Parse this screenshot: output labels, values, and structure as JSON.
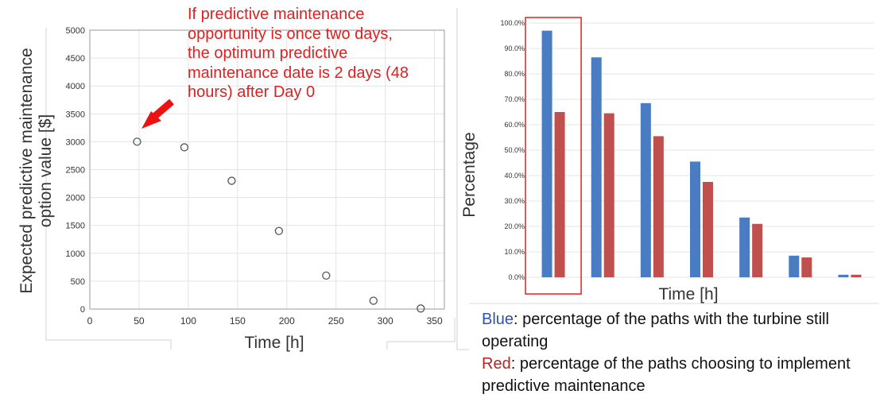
{
  "chart_data": [
    {
      "type": "scatter",
      "title": "",
      "xlabel": "Time [h]",
      "ylabel_lines": [
        "Expected predictive maintenance",
        "option value [$]"
      ],
      "xlim": [
        0,
        360
      ],
      "ylim": [
        0,
        5000
      ],
      "xticks": [
        "0",
        "50",
        "100",
        "150",
        "200",
        "250",
        "300",
        "350"
      ],
      "yticks": [
        "0",
        "500",
        "1000",
        "1500",
        "2000",
        "2500",
        "3000",
        "3500",
        "4000",
        "4500",
        "5000"
      ],
      "grid": true,
      "points": [
        {
          "x": 48,
          "y": 3000
        },
        {
          "x": 96,
          "y": 2900
        },
        {
          "x": 144,
          "y": 2300
        },
        {
          "x": 192,
          "y": 1400
        },
        {
          "x": 240,
          "y": 600
        },
        {
          "x": 288,
          "y": 150
        },
        {
          "x": 336,
          "y": 10
        }
      ],
      "annotation_lines": [
        "If predictive maintenance",
        "opportunity is once two days,",
        "the optimum predictive",
        "maintenance date is 2 days (48",
        "hours) after Day 0"
      ],
      "annotation_color": "#e02020"
    },
    {
      "type": "bar",
      "title": "",
      "xlabel": "Time [h]",
      "ylabel": "Percentage",
      "ylim": [
        0,
        1
      ],
      "yticks": [
        "0.0%",
        "10.0%",
        "20.0%",
        "30.0%",
        "40.0%",
        "50.0%",
        "60.0%",
        "70.0%",
        "80.0%",
        "90.0%",
        "100.0%"
      ],
      "grid": true,
      "categories_count": 7,
      "series": [
        {
          "color": "#4a7cc4",
          "values": [
            0.97,
            0.865,
            0.685,
            0.455,
            0.235,
            0.085,
            0.01
          ]
        },
        {
          "color": "#c0504d",
          "values": [
            0.65,
            0.645,
            0.555,
            0.375,
            0.21,
            0.078,
            0.01
          ]
        }
      ],
      "highlight_category": 0,
      "highlight_color": "#e02020",
      "legend": {
        "blue_key": "Blue",
        "blue_text": ": percentage of the paths with the turbine still operating",
        "red_key": "Red",
        "red_text": ": percentage of the paths choosing to implement predictive maintenance"
      }
    }
  ]
}
